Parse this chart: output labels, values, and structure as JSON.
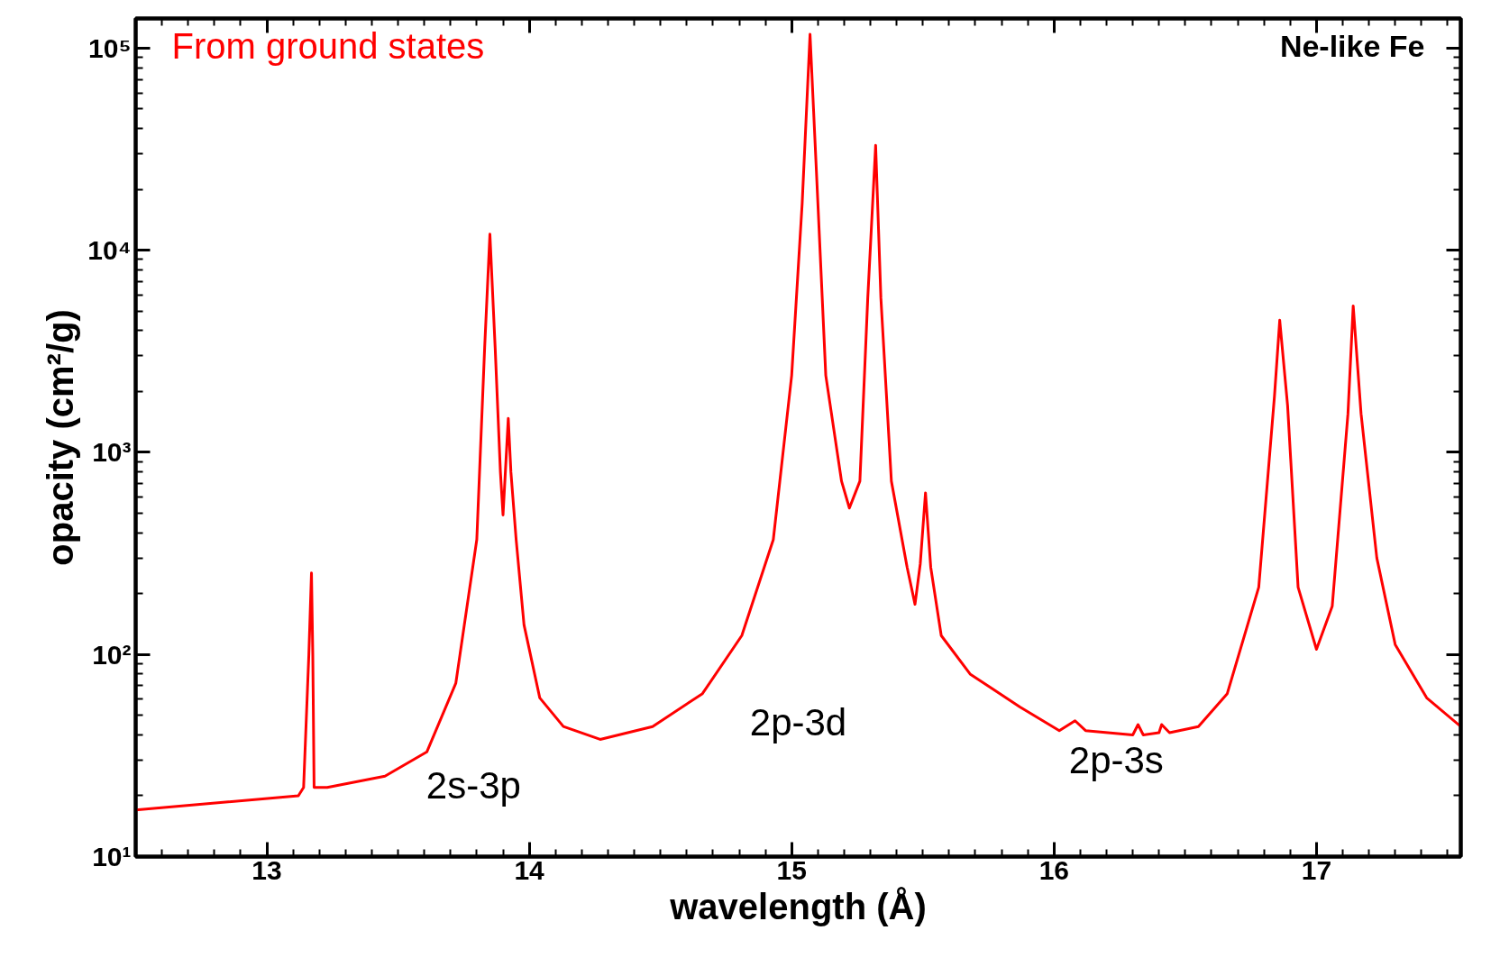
{
  "chart_data": {
    "type": "line",
    "xlabel": "wavelength (Å)",
    "ylabel": "opacity (cm²/g)",
    "log": "y",
    "grid": false,
    "xlim": [
      12.5,
      17.55
    ],
    "ylim": [
      10,
      140000
    ],
    "xticks": [
      13,
      14,
      15,
      16,
      17
    ],
    "yticks": [
      {
        "value": 10,
        "label": "10¹"
      },
      {
        "value": 100,
        "label": "10²"
      },
      {
        "value": 1000,
        "label": "10³"
      },
      {
        "value": 10000,
        "label": "10⁴"
      },
      {
        "value": 100000,
        "label": "10⁵"
      }
    ],
    "annotations": [
      "From ground states",
      "Ne-like Fe",
      "2s-3p",
      "2p-3d",
      "2p-3s"
    ],
    "series": [
      {
        "color": "#ff0000",
        "x": [
          12.5,
          13.12,
          13.14,
          13.16,
          13.17,
          13.175,
          13.18,
          13.23,
          13.45,
          13.61,
          13.72,
          13.8,
          13.83,
          13.85,
          13.87,
          13.89,
          13.9,
          13.92,
          13.93,
          13.95,
          13.98,
          14.04,
          14.13,
          14.27,
          14.47,
          14.66,
          14.81,
          14.93,
          15.0,
          15.04,
          15.07,
          15.1,
          15.13,
          15.19,
          15.22,
          15.26,
          15.29,
          15.32,
          15.34,
          15.38,
          15.44,
          15.47,
          15.49,
          15.51,
          15.53,
          15.57,
          15.68,
          15.87,
          16.02,
          16.08,
          16.12,
          16.3,
          16.32,
          16.34,
          16.4,
          16.41,
          16.44,
          16.55,
          16.66,
          16.78,
          16.84,
          16.86,
          16.89,
          16.93,
          17.0,
          17.06,
          17.12,
          17.14,
          17.17,
          17.23,
          17.3,
          17.42,
          17.55
        ],
        "values": [
          17,
          20,
          22,
          100,
          253,
          100,
          22,
          22,
          25,
          33,
          72,
          370,
          3300,
          12000,
          3300,
          800,
          490,
          1470,
          800,
          370,
          140,
          61,
          44,
          38,
          44,
          64,
          124,
          370,
          2400,
          17000,
          117000,
          17000,
          2400,
          720,
          530,
          720,
          5800,
          33000,
          5800,
          720,
          270,
          177,
          280,
          630,
          270,
          124,
          80,
          55,
          42,
          47,
          42,
          40,
          45,
          40,
          41,
          45,
          41,
          44,
          64,
          215,
          1900,
          4500,
          1700,
          215,
          106,
          173,
          1550,
          5300,
          1550,
          300,
          112,
          61,
          44
        ]
      }
    ]
  }
}
